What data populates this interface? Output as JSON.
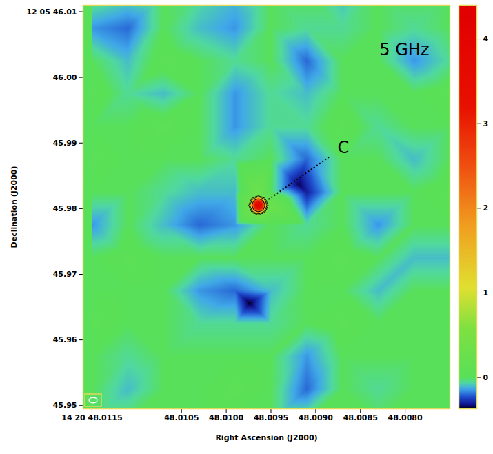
{
  "chart_data": {
    "type": "heatmap",
    "xlabel": "Right Ascension (J2000)",
    "ylabel": "Declination (J2000)",
    "band_label": "5 GHz",
    "source_label": "C",
    "xlim": [
      48.0116,
      48.0075
    ],
    "ylim": [
      45.9495,
      46.011
    ],
    "xticks": [
      {
        "value": 48.0115,
        "label": "14 20 48.0115"
      },
      48.0105,
      {
        "value": 48.01,
        "label": "48.0100"
      },
      48.0095,
      {
        "value": 48.009,
        "label": "48.0090"
      },
      48.0085,
      {
        "value": 48.008,
        "label": "48.0080"
      }
    ],
    "yticks": [
      {
        "value": 46.01,
        "label": "12 05 46.01"
      },
      {
        "value": 46.0,
        "label": "46.00"
      },
      45.99,
      45.98,
      45.97,
      45.96,
      45.95
    ],
    "image": {
      "ra": [
        48.0115,
        48.0111,
        48.0107,
        48.0103,
        48.0099,
        48.0095,
        48.0091,
        48.0087,
        48.0083,
        48.0079,
        48.0075
      ],
      "dec": [
        46.0125,
        46.0075,
        46.0025,
        45.9975,
        45.9925,
        45.9875,
        45.9825,
        45.9775,
        45.9725,
        45.9675,
        45.9625,
        45.9575,
        45.9525,
        45.9475
      ],
      "values": [
        [
          0,
          -0.05,
          0,
          -0.05,
          -0.1,
          0,
          0,
          -0.1,
          0,
          0,
          0
        ],
        [
          -0.15,
          -0.2,
          0,
          -0.1,
          -0.15,
          0,
          -0.05,
          -0.05,
          0,
          -0.05,
          0
        ],
        [
          0,
          -0.1,
          0.05,
          0,
          -0.05,
          0,
          -0.2,
          0,
          0,
          -0.15,
          -0.05
        ],
        [
          0.05,
          -0.05,
          -0.1,
          0,
          -0.15,
          -0.05,
          -0.1,
          0,
          0,
          0,
          0.05
        ],
        [
          0,
          0,
          0.05,
          0,
          -0.15,
          -0.05,
          -0.05,
          0.05,
          -0.05,
          0,
          0
        ],
        [
          0.05,
          0,
          0,
          0,
          -0.05,
          0,
          -0.2,
          0,
          0,
          -0.1,
          0
        ],
        [
          0,
          0,
          -0.05,
          -0.1,
          -0.1,
          0,
          -0.3,
          0,
          0,
          0,
          0.05
        ],
        [
          -0.15,
          0,
          -0.1,
          -0.2,
          -0.15,
          0,
          -0.05,
          0,
          -0.15,
          0,
          0
        ],
        [
          0,
          0.05,
          0,
          0,
          0,
          0,
          0,
          0.05,
          0,
          -0.1,
          -0.1
        ],
        [
          0,
          0,
          0,
          -0.15,
          -0.2,
          -0.1,
          0,
          0,
          -0.1,
          0,
          0
        ],
        [
          0.05,
          0,
          0,
          -0.05,
          -0.05,
          -0.05,
          0,
          0.05,
          0,
          0,
          0
        ],
        [
          0,
          -0.05,
          0,
          0,
          0,
          0,
          -0.15,
          0,
          0,
          0,
          0
        ],
        [
          0,
          -0.1,
          0,
          0,
          0.05,
          0,
          -0.2,
          0,
          -0.05,
          0,
          0
        ],
        [
          0,
          0,
          0,
          0,
          0,
          0,
          0,
          0,
          0,
          0,
          0
        ]
      ]
    },
    "points": {
      "ra": [
        48.00964,
        48.009692,
        48.009588,
        48.00964,
        48.00964,
        48.009677,
        48.009677,
        48.009603,
        48.009603,
        48.009752,
        48.009528,
        48.00964,
        48.00964,
        48.009719,
        48.009719,
        48.009561,
        48.009561,
        48.00974,
        48.00919
      ],
      "dec": [
        45.98051,
        45.98051,
        45.98051,
        45.981224,
        45.979796,
        45.981015,
        45.980005,
        45.981015,
        45.980005,
        45.98051,
        45.98051,
        45.98204,
        45.97898,
        45.98159,
        45.97943,
        45.98159,
        45.97943,
        45.96561,
        45.98367
      ],
      "values": [
        4.4,
        3.0,
        3.0,
        3.0,
        3.0,
        3.0,
        3.0,
        3.0,
        3.0,
        0.3,
        0.3,
        0.3,
        0.3,
        0.3,
        0.3,
        0.3,
        0.3,
        -0.37,
        -0.35
      ]
    },
    "contour_levels": [
      0.5,
      1,
      2
    ],
    "colorbar": {
      "range": [
        -0.37,
        4.4
      ],
      "ticks": [
        0,
        1,
        2,
        3,
        4
      ]
    },
    "beam": {
      "ra": 9e-05,
      "dec": 0.0008
    }
  }
}
